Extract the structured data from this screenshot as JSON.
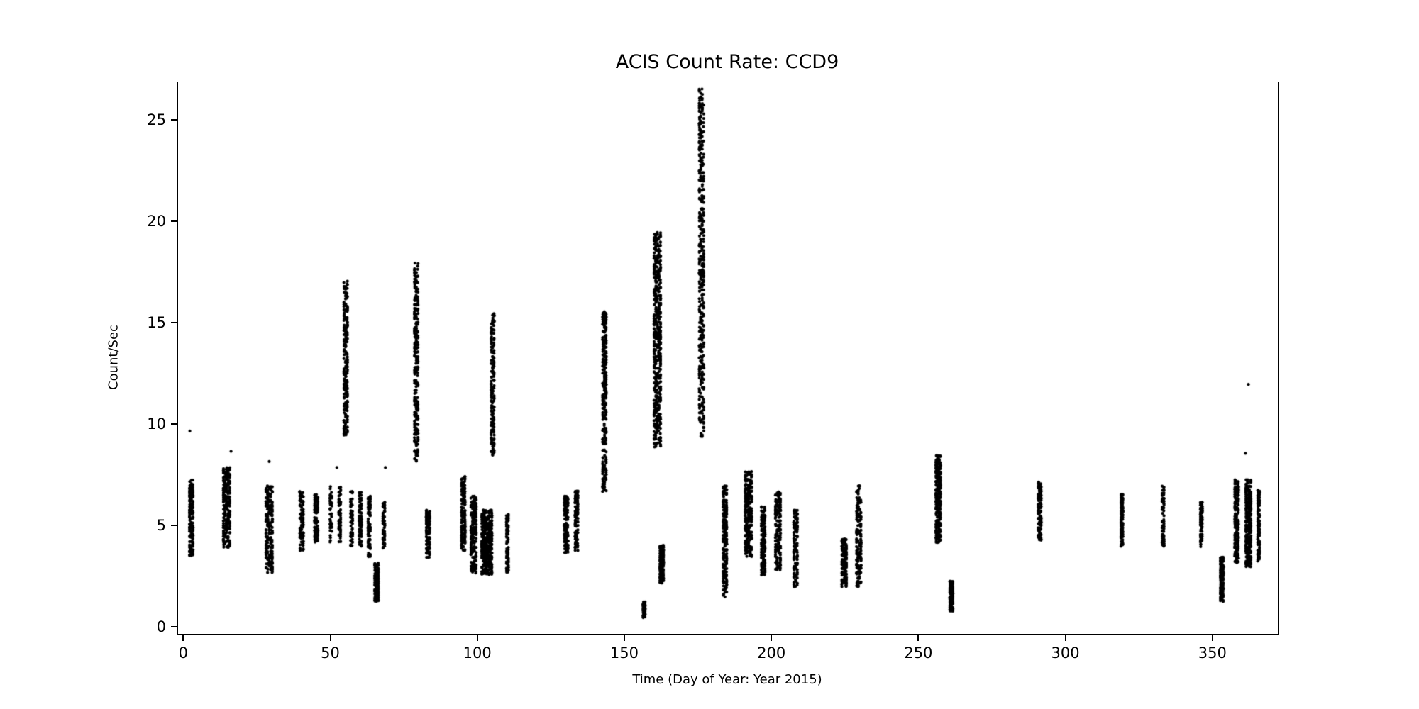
{
  "figure": {
    "title": "ACIS Count Rate: CCD9",
    "xlabel": "Time (Day of Year: Year 2015)",
    "ylabel": "Count/Sec"
  },
  "chart_data": {
    "type": "scatter",
    "title": "ACIS Count Rate: CCD9",
    "xlabel": "Time (Day of Year: Year 2015)",
    "ylabel": "Count/Sec",
    "xlim": [
      -2,
      372
    ],
    "ylim": [
      -0.3,
      26.9
    ],
    "xticks": [
      0,
      50,
      100,
      150,
      200,
      250,
      300,
      350
    ],
    "yticks": [
      0,
      5,
      10,
      15,
      20,
      25
    ],
    "grid": false,
    "legend": null,
    "marker_color": "#000000",
    "marker_radius": 2.1,
    "background": "#ffffff",
    "clusters": [
      {
        "day": 2.5,
        "spread": 1.6,
        "ymin": 3.5,
        "ymax": 7.3,
        "n": 170
      },
      {
        "day": 14.5,
        "spread": 2.6,
        "ymin": 3.9,
        "ymax": 7.9,
        "n": 230
      },
      {
        "day": 29.0,
        "spread": 2.6,
        "ymin": 2.7,
        "ymax": 7.0,
        "n": 210
      },
      {
        "day": 40.0,
        "spread": 1.6,
        "ymin": 3.8,
        "ymax": 6.8,
        "n": 95
      },
      {
        "day": 45.0,
        "spread": 1.5,
        "ymin": 4.2,
        "ymax": 6.6,
        "n": 85
      },
      {
        "day": 50.0,
        "spread": 1.0,
        "ymin": 4.2,
        "ymax": 7.0,
        "n": 45
      },
      {
        "day": 53.0,
        "spread": 1.0,
        "ymin": 4.2,
        "ymax": 7.0,
        "n": 60
      },
      {
        "day": 55.0,
        "spread": 1.6,
        "ymin": 9.5,
        "ymax": 17.1,
        "n": 230
      },
      {
        "day": 57.0,
        "spread": 1.0,
        "ymin": 4.0,
        "ymax": 6.8,
        "n": 60
      },
      {
        "day": 60.0,
        "spread": 1.2,
        "ymin": 4.0,
        "ymax": 6.7,
        "n": 85
      },
      {
        "day": 63.0,
        "spread": 1.2,
        "ymin": 3.5,
        "ymax": 6.5,
        "n": 85
      },
      {
        "day": 65.5,
        "spread": 1.6,
        "ymin": 1.3,
        "ymax": 3.2,
        "n": 150
      },
      {
        "day": 68.0,
        "spread": 1.0,
        "ymin": 3.9,
        "ymax": 6.3,
        "n": 60
      },
      {
        "day": 79.0,
        "spread": 1.6,
        "ymin": 8.2,
        "ymax": 18.0,
        "n": 270
      },
      {
        "day": 83.0,
        "spread": 1.5,
        "ymin": 3.4,
        "ymax": 5.8,
        "n": 125
      },
      {
        "day": 95.0,
        "spread": 1.6,
        "ymin": 3.8,
        "ymax": 7.5,
        "n": 150
      },
      {
        "day": 98.5,
        "spread": 2.2,
        "ymin": 2.7,
        "ymax": 6.5,
        "n": 210
      },
      {
        "day": 103.0,
        "spread": 3.8,
        "ymin": 2.6,
        "ymax": 5.8,
        "n": 430
      },
      {
        "day": 105.0,
        "spread": 1.3,
        "ymin": 8.5,
        "ymax": 15.5,
        "n": 185
      },
      {
        "day": 110.0,
        "spread": 1.0,
        "ymin": 2.7,
        "ymax": 5.6,
        "n": 85
      },
      {
        "day": 130.0,
        "spread": 1.6,
        "ymin": 3.7,
        "ymax": 6.5,
        "n": 135
      },
      {
        "day": 133.5,
        "spread": 1.3,
        "ymin": 3.8,
        "ymax": 6.8,
        "n": 105
      },
      {
        "day": 143.0,
        "spread": 1.6,
        "ymin": 6.7,
        "ymax": 15.6,
        "n": 270
      },
      {
        "day": 156.5,
        "spread": 1.0,
        "ymin": 0.5,
        "ymax": 1.3,
        "n": 95
      },
      {
        "day": 161.0,
        "spread": 2.6,
        "ymin": 8.9,
        "ymax": 19.5,
        "n": 490
      },
      {
        "day": 162.5,
        "spread": 1.6,
        "ymin": 2.2,
        "ymax": 4.1,
        "n": 165
      },
      {
        "day": 176.0,
        "spread": 1.9,
        "ymin": 9.4,
        "ymax": 26.6,
        "n": 430
      },
      {
        "day": 184.0,
        "spread": 1.6,
        "ymin": 1.5,
        "ymax": 7.0,
        "n": 210
      },
      {
        "day": 192.0,
        "spread": 2.6,
        "ymin": 3.5,
        "ymax": 7.7,
        "n": 270
      },
      {
        "day": 197.0,
        "spread": 1.6,
        "ymin": 2.6,
        "ymax": 6.0,
        "n": 145
      },
      {
        "day": 202.0,
        "spread": 2.1,
        "ymin": 2.8,
        "ymax": 6.8,
        "n": 185
      },
      {
        "day": 208.0,
        "spread": 1.6,
        "ymin": 2.0,
        "ymax": 5.8,
        "n": 145
      },
      {
        "day": 224.5,
        "spread": 1.9,
        "ymin": 2.0,
        "ymax": 4.4,
        "n": 165
      },
      {
        "day": 229.5,
        "spread": 1.9,
        "ymin": 2.0,
        "ymax": 7.0,
        "n": 165
      },
      {
        "day": 256.5,
        "spread": 1.9,
        "ymin": 4.2,
        "ymax": 8.5,
        "n": 270
      },
      {
        "day": 261.0,
        "spread": 1.3,
        "ymin": 0.8,
        "ymax": 2.3,
        "n": 165
      },
      {
        "day": 291.0,
        "spread": 1.3,
        "ymin": 4.3,
        "ymax": 7.2,
        "n": 125
      },
      {
        "day": 319.0,
        "spread": 1.0,
        "ymin": 4.0,
        "ymax": 6.6,
        "n": 95
      },
      {
        "day": 333.0,
        "spread": 1.0,
        "ymin": 4.0,
        "ymax": 7.2,
        "n": 65
      },
      {
        "day": 346.0,
        "spread": 1.0,
        "ymin": 4.0,
        "ymax": 6.2,
        "n": 65
      },
      {
        "day": 353.0,
        "spread": 1.3,
        "ymin": 1.3,
        "ymax": 3.5,
        "n": 150
      },
      {
        "day": 358.0,
        "spread": 1.6,
        "ymin": 3.2,
        "ymax": 7.3,
        "n": 190
      },
      {
        "day": 362.0,
        "spread": 2.1,
        "ymin": 3.0,
        "ymax": 7.3,
        "n": 290
      },
      {
        "day": 365.5,
        "spread": 1.0,
        "ymin": 3.2,
        "ymax": 6.8,
        "n": 125
      }
    ],
    "outliers": [
      [
        2.0,
        9.7
      ],
      [
        16.0,
        8.7
      ],
      [
        29.0,
        8.2
      ],
      [
        52.0,
        7.9
      ],
      [
        68.5,
        7.9
      ],
      [
        193.0,
        7.7
      ],
      [
        256.0,
        8.5
      ],
      [
        361.0,
        8.6
      ],
      [
        362.0,
        12.0
      ]
    ]
  }
}
